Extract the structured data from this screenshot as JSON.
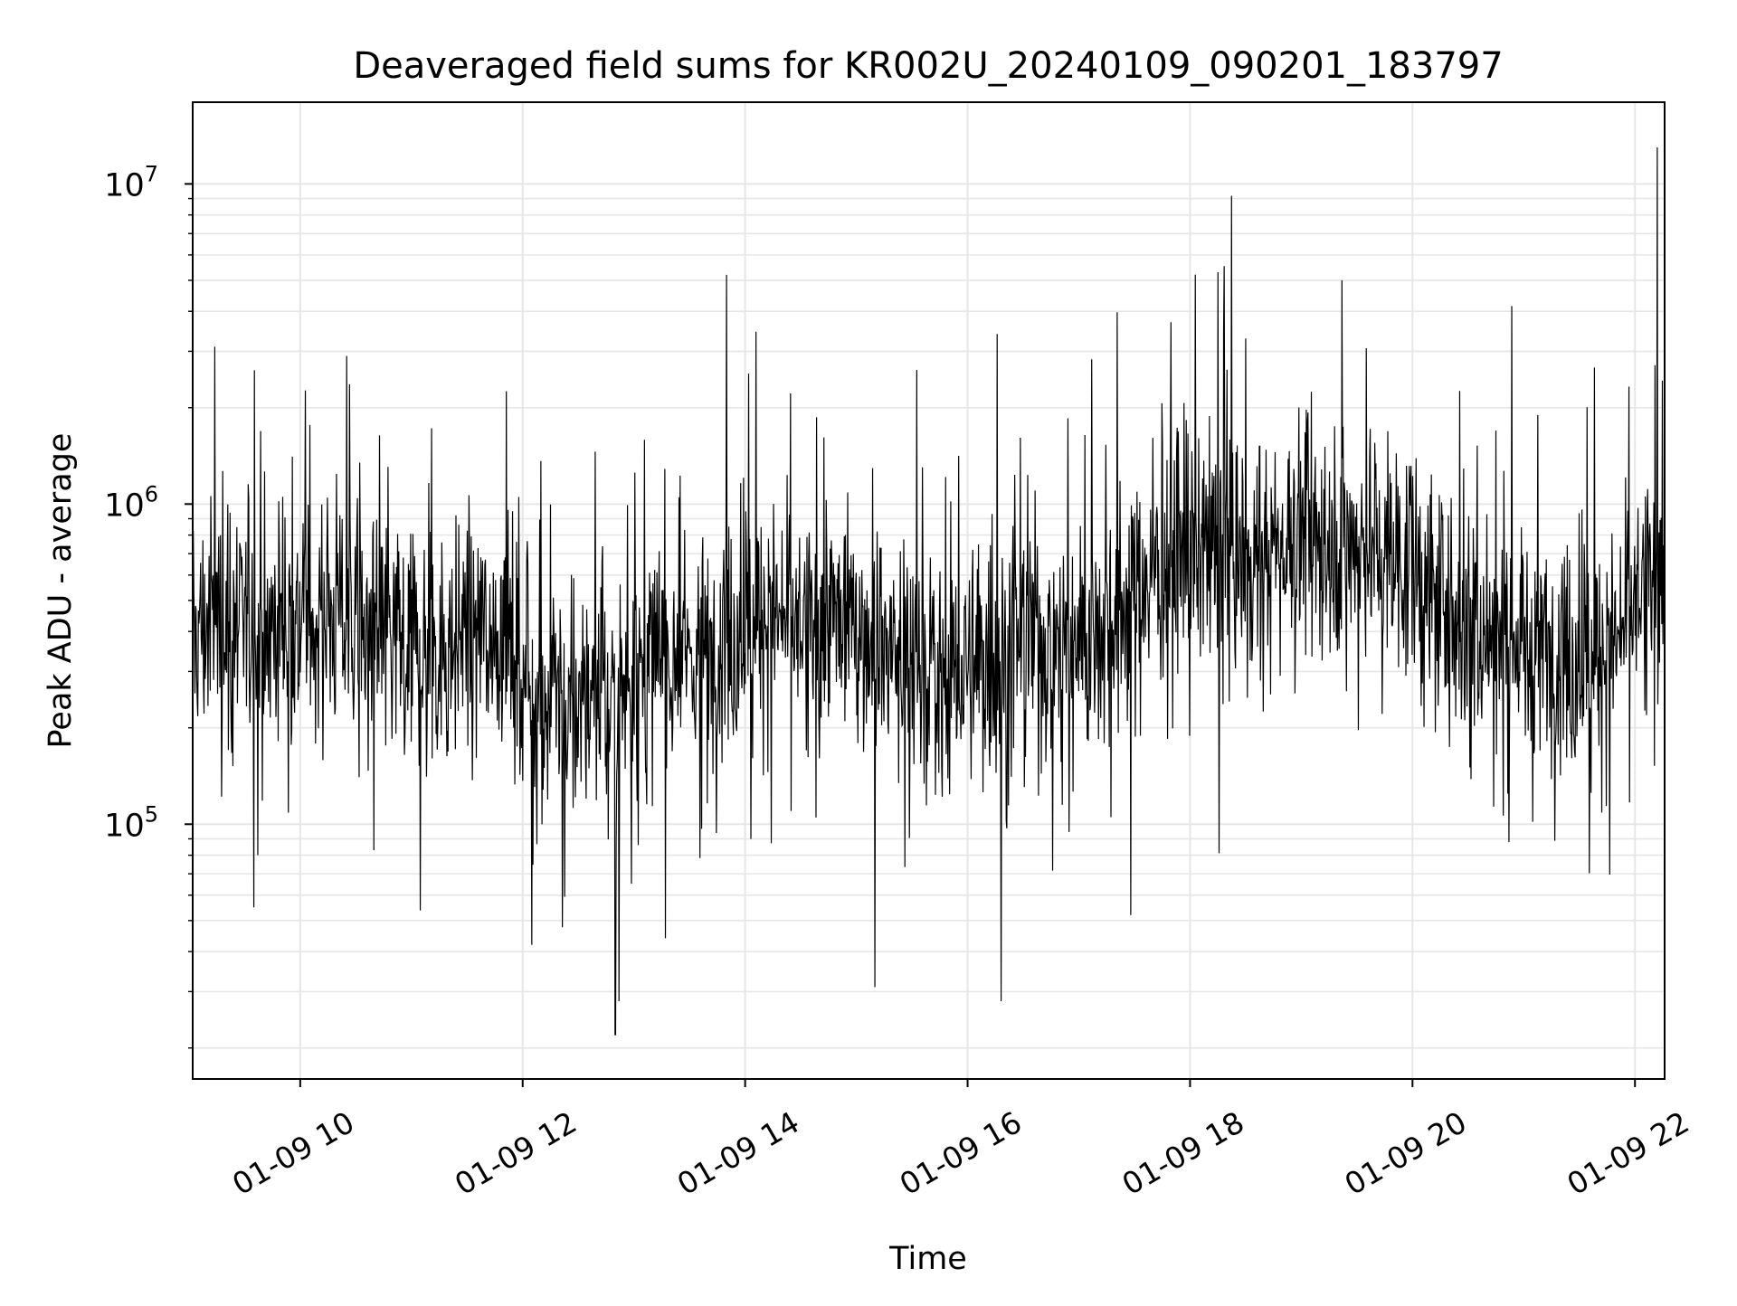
{
  "chart_data": {
    "type": "line",
    "title": "Deaveraged field sums for KR002U_20240109_090201_183797",
    "xlabel": "Time",
    "ylabel": "Peak ADU - average",
    "y_scale": "log",
    "grid": true,
    "grid_minor": true,
    "legend": "none",
    "line_color": "#000000",
    "grid_color": "#e6e6e6",
    "xlim": [
      "2024-01-09 09:02",
      "2024-01-09 22:16"
    ],
    "ylim": [
      16000,
      18000000
    ],
    "x_ticks": [
      {
        "x": "2024-01-09 10:00",
        "label": "01-09 10"
      },
      {
        "x": "2024-01-09 12:00",
        "label": "01-09 12"
      },
      {
        "x": "2024-01-09 14:00",
        "label": "01-09 14"
      },
      {
        "x": "2024-01-09 16:00",
        "label": "01-09 16"
      },
      {
        "x": "2024-01-09 18:00",
        "label": "01-09 18"
      },
      {
        "x": "2024-01-09 20:00",
        "label": "01-09 20"
      },
      {
        "x": "2024-01-09 22:00",
        "label": "01-09 22"
      }
    ],
    "y_ticks": [
      {
        "value": 100000,
        "base": "10",
        "exp": "5"
      },
      {
        "value": 1000000,
        "base": "10",
        "exp": "6"
      },
      {
        "value": 10000000,
        "base": "10",
        "exp": "7"
      }
    ],
    "series": [
      {
        "x": [
          "2024-01-09 09:02",
          "2024-01-09 09:10",
          "2024-01-09 09:20",
          "2024-01-09 09:30",
          "2024-01-09 09:40",
          "2024-01-09 09:50",
          "2024-01-09 10:00",
          "2024-01-09 10:10",
          "2024-01-09 10:20",
          "2024-01-09 10:30",
          "2024-01-09 10:40",
          "2024-01-09 10:50",
          "2024-01-09 11:00",
          "2024-01-09 11:10",
          "2024-01-09 11:20",
          "2024-01-09 11:30",
          "2024-01-09 11:40",
          "2024-01-09 11:50",
          "2024-01-09 12:00",
          "2024-01-09 12:10",
          "2024-01-09 12:20",
          "2024-01-09 12:30",
          "2024-01-09 12:40",
          "2024-01-09 12:50",
          "2024-01-09 13:00",
          "2024-01-09 13:10",
          "2024-01-09 13:20",
          "2024-01-09 13:30",
          "2024-01-09 13:40",
          "2024-01-09 13:50",
          "2024-01-09 14:00",
          "2024-01-09 14:10",
          "2024-01-09 14:20",
          "2024-01-09 14:30",
          "2024-01-09 14:40",
          "2024-01-09 14:50",
          "2024-01-09 15:00",
          "2024-01-09 15:10",
          "2024-01-09 15:20",
          "2024-01-09 15:30",
          "2024-01-09 15:40",
          "2024-01-09 15:50",
          "2024-01-09 16:00",
          "2024-01-09 16:10",
          "2024-01-09 16:20",
          "2024-01-09 16:30",
          "2024-01-09 16:40",
          "2024-01-09 16:50",
          "2024-01-09 17:00",
          "2024-01-09 17:10",
          "2024-01-09 17:20",
          "2024-01-09 17:30",
          "2024-01-09 17:40",
          "2024-01-09 17:50",
          "2024-01-09 18:00",
          "2024-01-09 18:10",
          "2024-01-09 18:20",
          "2024-01-09 18:30",
          "2024-01-09 18:40",
          "2024-01-09 18:50",
          "2024-01-09 19:00",
          "2024-01-09 19:10",
          "2024-01-09 19:20",
          "2024-01-09 19:30",
          "2024-01-09 19:40",
          "2024-01-09 19:50",
          "2024-01-09 20:00",
          "2024-01-09 20:10",
          "2024-01-09 20:20",
          "2024-01-09 20:30",
          "2024-01-09 20:40",
          "2024-01-09 20:50",
          "2024-01-09 21:00",
          "2024-01-09 21:10",
          "2024-01-09 21:20",
          "2024-01-09 21:30",
          "2024-01-09 21:40",
          "2024-01-09 21:50",
          "2024-01-09 22:00",
          "2024-01-09 22:10",
          "2024-01-09 22:16"
        ],
        "values": [
          380000,
          420000,
          450000,
          400000,
          390000,
          430000,
          440000,
          460000,
          470000,
          430000,
          400000,
          380000,
          370000,
          350000,
          360000,
          400000,
          420000,
          380000,
          300000,
          250000,
          220000,
          240000,
          260000,
          230000,
          280000,
          320000,
          330000,
          340000,
          350000,
          380000,
          420000,
          450000,
          430000,
          400000,
          420000,
          440000,
          400000,
          380000,
          360000,
          330000,
          310000,
          300000,
          300000,
          320000,
          350000,
          380000,
          370000,
          360000,
          380000,
          420000,
          480000,
          550000,
          620000,
          650000,
          700000,
          720000,
          750000,
          680000,
          700000,
          780000,
          820000,
          800000,
          780000,
          760000,
          740000,
          720000,
          600000,
          520000,
          460000,
          420000,
          400000,
          380000,
          360000,
          350000,
          340000,
          330000,
          340000,
          360000,
          480000,
          600000,
          650000
        ]
      }
    ],
    "spikes": [
      {
        "x": "2024-01-09 09:14",
        "value": 3100000
      },
      {
        "x": "2024-01-09 09:35",
        "value": 55000
      },
      {
        "x": "2024-01-09 10:25",
        "value": 2900000
      },
      {
        "x": "2024-01-09 12:05",
        "value": 42000
      },
      {
        "x": "2024-01-09 12:50",
        "value": 22000
      },
      {
        "x": "2024-01-09 12:52",
        "value": 28000
      },
      {
        "x": "2024-01-09 13:50",
        "value": 5200000
      },
      {
        "x": "2024-01-09 15:10",
        "value": 31000
      },
      {
        "x": "2024-01-09 16:18",
        "value": 28000
      },
      {
        "x": "2024-01-09 16:16",
        "value": 3400000
      },
      {
        "x": "2024-01-09 17:28",
        "value": 52000
      },
      {
        "x": "2024-01-09 18:15",
        "value": 5300000
      },
      {
        "x": "2024-01-09 19:22",
        "value": 5000000
      },
      {
        "x": "2024-01-09 22:12",
        "value": 13000000
      }
    ]
  }
}
